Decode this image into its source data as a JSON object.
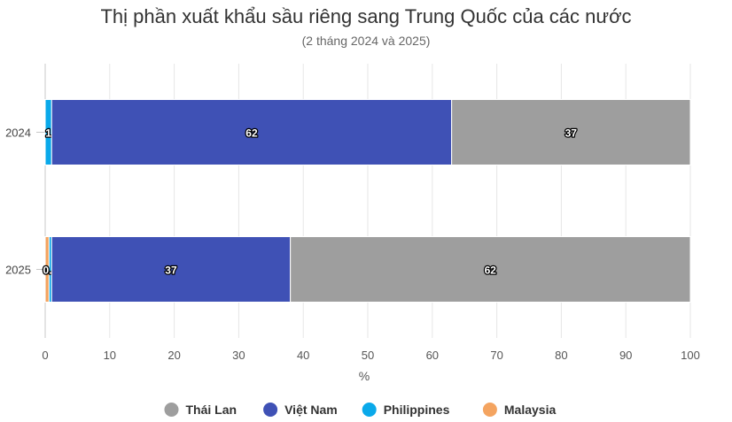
{
  "chart_data": {
    "type": "bar",
    "orientation": "horizontal",
    "stacked": true,
    "title": "Thị phần xuất khẩu sầu riêng sang Trung Quốc của các nước",
    "subtitle": "(2 tháng 2024 và 2025)",
    "xlabel": "%",
    "ylabel": "",
    "xlim": [
      0,
      100
    ],
    "xticks": [
      0,
      10,
      20,
      30,
      40,
      50,
      60,
      70,
      80,
      90,
      100
    ],
    "grid": true,
    "legend_position": "bottom",
    "categories": [
      "2024",
      "2025"
    ],
    "series": [
      {
        "name": "Malaysia",
        "color": "#f4a460",
        "values": [
          0,
          0.6
        ],
        "labels": [
          "",
          ""
        ]
      },
      {
        "name": "Philippines",
        "color": "#0aa9ea",
        "values": [
          1,
          0.4
        ],
        "labels": [
          "1",
          "0.4"
        ]
      },
      {
        "name": "Việt Nam",
        "color": "#3f51b5",
        "values": [
          62,
          37
        ],
        "labels": [
          "62",
          "37"
        ]
      },
      {
        "name": "Thái Lan",
        "color": "#9e9e9e",
        "values": [
          37,
          62
        ],
        "labels": [
          "37",
          "62"
        ]
      }
    ],
    "legend_order": [
      "Thái Lan",
      "Việt Nam",
      "Philippines",
      "Malaysia"
    ]
  }
}
